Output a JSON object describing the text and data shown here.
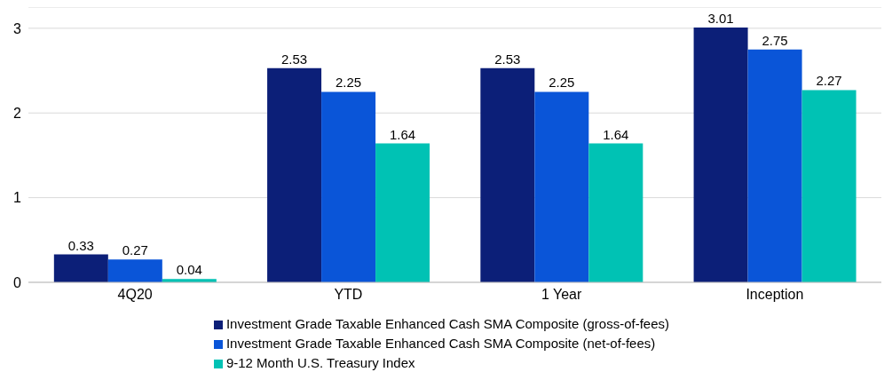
{
  "chart_data": {
    "type": "bar",
    "categories": [
      "4Q20",
      "YTD",
      "1 Year",
      "Inception"
    ],
    "series": [
      {
        "name": "Investment Grade Taxable Enhanced Cash SMA Composite (gross-of-fees)",
        "color": "#0c1f78",
        "values": [
          0.33,
          2.53,
          2.53,
          3.01
        ]
      },
      {
        "name": "Investment Grade Taxable Enhanced Cash SMA Composite (net-of-fees)",
        "color": "#0a55d8",
        "values": [
          0.27,
          2.25,
          2.25,
          2.75
        ]
      },
      {
        "name": "9-12 Month U.S. Treasury Index",
        "color": "#00c2b4",
        "values": [
          0.04,
          1.64,
          1.64,
          2.27
        ]
      }
    ],
    "ylim": [
      0,
      3.25
    ],
    "yticks": [
      0,
      1,
      2,
      3
    ],
    "grid": "y",
    "legend": "bottom",
    "data_labels": true
  }
}
